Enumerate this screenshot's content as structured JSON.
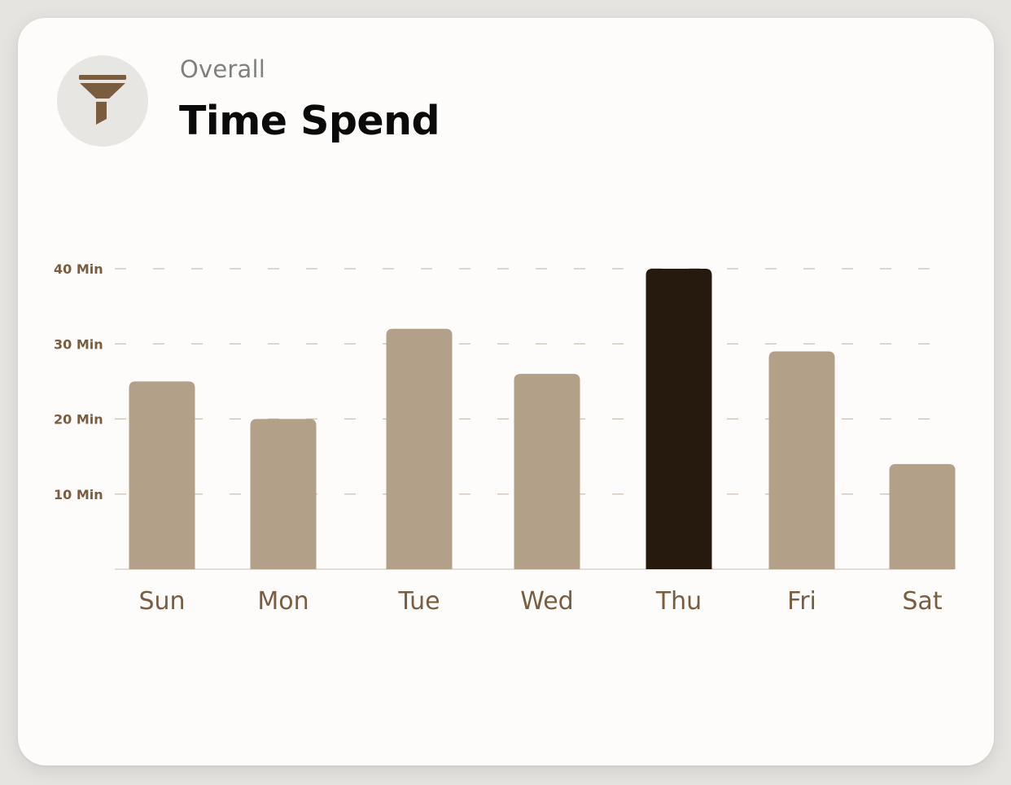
{
  "header": {
    "subtitle": "Overall",
    "title": "Time Spend",
    "icon": "funnel-icon"
  },
  "colors": {
    "bar": "#b3a088",
    "highlight_bar": "#261a0e",
    "axis_text": "#7a5c3e",
    "grid": "#c9bfb2",
    "icon": "#7a5c3e",
    "icon_bg": "#e7e6e2"
  },
  "chart_data": {
    "type": "bar",
    "title": "Time Spend",
    "categories": [
      "Sun",
      "Mon",
      "Tue",
      "Wed",
      "Thu",
      "Fri",
      "Sat"
    ],
    "values": [
      25,
      20,
      32,
      26,
      40,
      29,
      14
    ],
    "highlight_index": 4,
    "ylim": [
      0,
      40
    ],
    "yticks": [
      10,
      20,
      30,
      40
    ],
    "ytick_labels": [
      "10 Min",
      "20 Min",
      "30 Min",
      "40 Min"
    ],
    "xlabel": "",
    "ylabel": "",
    "grid": "dashed horizontal"
  }
}
